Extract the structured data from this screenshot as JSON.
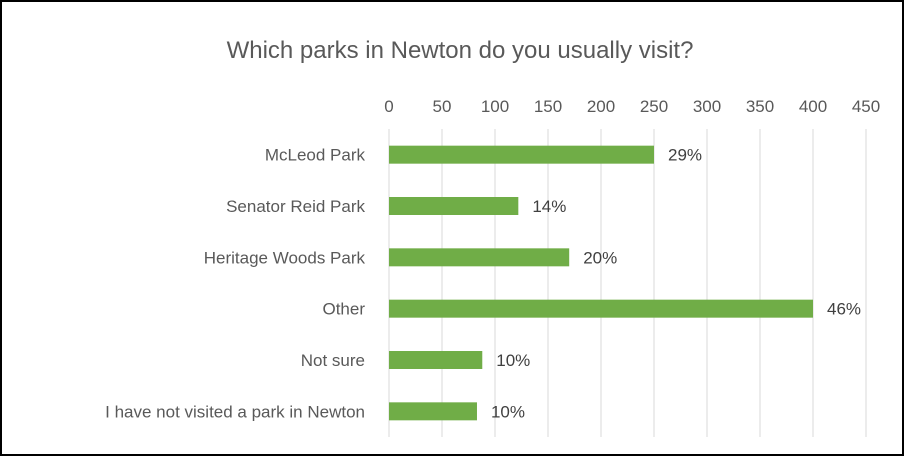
{
  "chart_data": {
    "type": "bar",
    "orientation": "horizontal",
    "title": "Which parks in Newton do you usually visit?",
    "categories": [
      "McLeod Park",
      "Senator Reid Park",
      "Heritage Woods Park",
      "Other",
      "Not sure",
      "I have not visited a park in Newton"
    ],
    "values": [
      250,
      122,
      170,
      400,
      88,
      83
    ],
    "data_labels": [
      "29%",
      "14%",
      "20%",
      "46%",
      "10%",
      "10%"
    ],
    "x_ticks": [
      "0",
      "50",
      "100",
      "150",
      "200",
      "250",
      "300",
      "350",
      "400",
      "450"
    ],
    "xlim": [
      0,
      450
    ],
    "x_axis_position": "top",
    "grid": true,
    "legend": "none",
    "colors": {
      "bar": "#70AD47",
      "grid": "#D9D9D9",
      "frame": "#000000"
    }
  }
}
